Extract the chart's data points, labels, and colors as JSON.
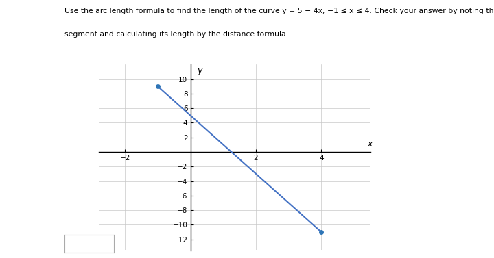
{
  "title_line1": "Use the arc length formula to find the length of the curve y = 5 − 4x, −1 ≤ x ≤ 4. Check your answer by noting that the curve is a line",
  "title_line2": "segment and calculating its length by the distance formula.",
  "point1": [
    -1,
    9
  ],
  "point2": [
    4,
    -11
  ],
  "xlim": [
    -2.8,
    5.5
  ],
  "ylim": [
    -13.5,
    12.0
  ],
  "xticks": [
    -2,
    2,
    4
  ],
  "yticks": [
    -12,
    -10,
    -8,
    -6,
    -4,
    -2,
    2,
    4,
    6,
    8,
    10
  ],
  "line_color": "#4472C4",
  "dot_color": "#2E75B6",
  "dot_size": 5,
  "grid_color": "#C8C8C8",
  "axis_color": "#000000",
  "xlabel": "x",
  "ylabel": "y",
  "bg_color": "#FFFFFF",
  "figsize": [
    7.2,
    3.77
  ],
  "dpi": 100,
  "title_fontsize": 7.8,
  "tick_fontsize": 7.5
}
